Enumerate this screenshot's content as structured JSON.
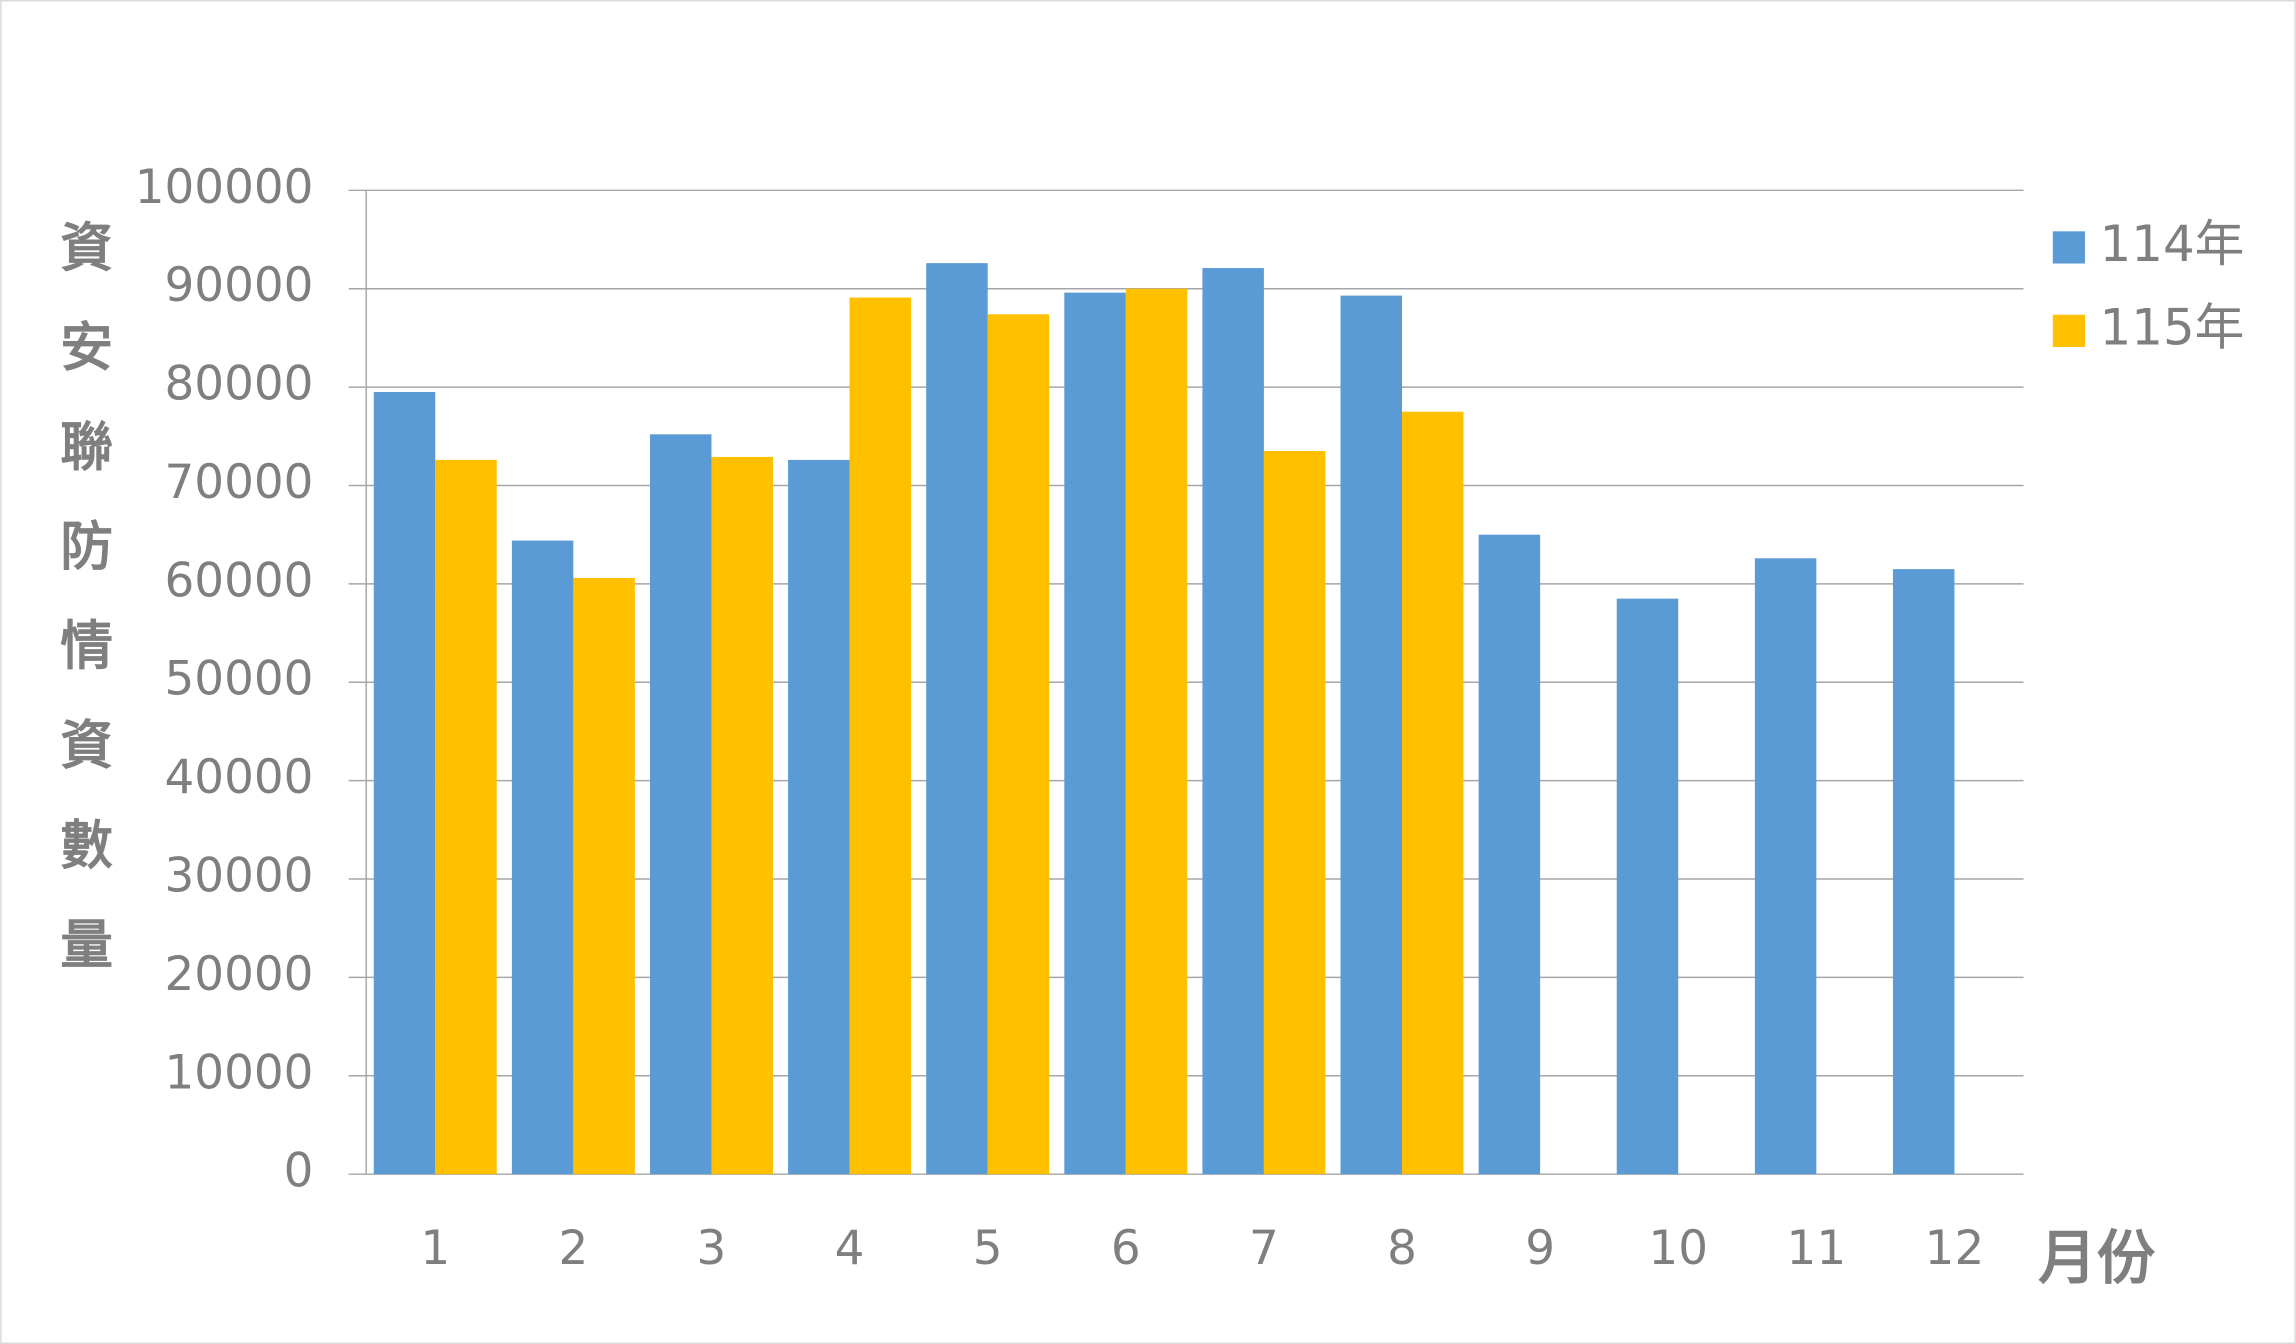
{
  "chart_data": {
    "type": "bar",
    "y_axis_label": "資安聯防情資數量",
    "x_axis_label": "月份",
    "categories": [
      "1",
      "2",
      "3",
      "4",
      "5",
      "6",
      "7",
      "8",
      "9",
      "10",
      "11",
      "12"
    ],
    "series": [
      {
        "name": "114年",
        "color": "#5b9bd5",
        "values": [
          79500,
          64400,
          75200,
          72600,
          92600,
          89600,
          92100,
          89300,
          65000,
          58500,
          62600,
          61500
        ]
      },
      {
        "name": "115年",
        "color": "#ffc000",
        "values": [
          72600,
          60600,
          72900,
          89100,
          87400,
          90000,
          73500,
          77500,
          null,
          null,
          null,
          null
        ]
      }
    ],
    "ylim": [
      0,
      100000
    ],
    "yticks": [
      0,
      10000,
      20000,
      30000,
      40000,
      50000,
      60000,
      70000,
      80000,
      90000,
      100000
    ],
    "grid": true,
    "legend": "right"
  }
}
